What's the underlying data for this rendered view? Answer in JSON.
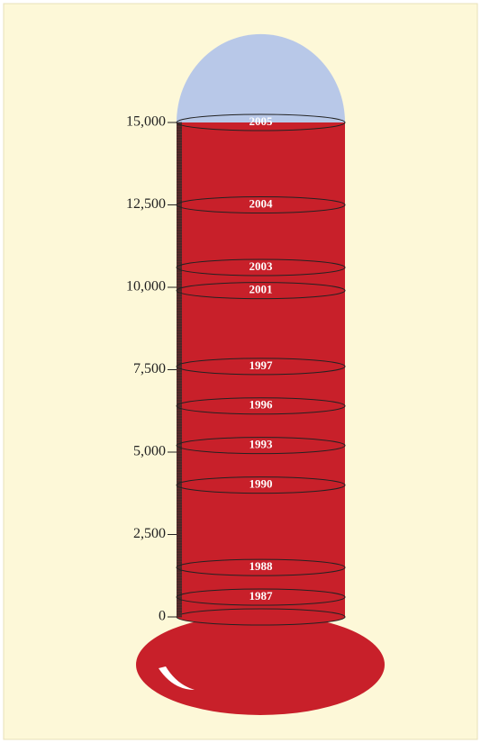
{
  "chart_data": {
    "type": "thermometer",
    "categories": [
      "2005",
      "2004",
      "2003",
      "2001",
      "1997",
      "1996",
      "1993",
      "1990",
      "1988",
      "1987"
    ],
    "values": [
      15000,
      12500,
      10600,
      9900,
      7600,
      6400,
      5200,
      4000,
      1500,
      600
    ],
    "color": "#c8202a",
    "ylim": [
      0,
      15000
    ],
    "yticks": [
      0,
      {
        "value": 2500,
        "label": "2,500"
      },
      {
        "value": 5000,
        "label": "5,000"
      },
      {
        "value": 7500,
        "label": "7,500"
      },
      {
        "value": 10000,
        "label": "10,000"
      },
      {
        "value": 12500,
        "label": "12,500"
      },
      {
        "value": 15000,
        "label": "15,000"
      }
    ]
  }
}
